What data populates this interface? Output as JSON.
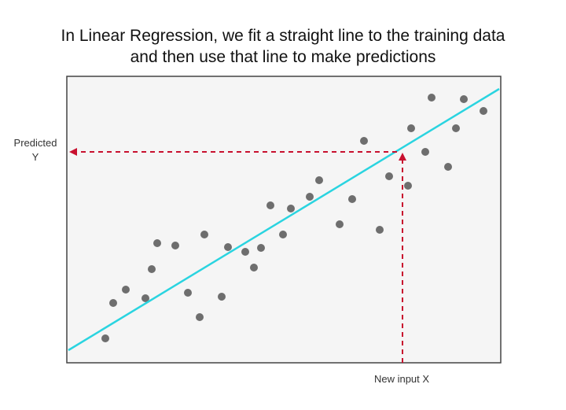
{
  "title": {
    "line1": "In Linear Regression, we fit a straight line to the training data",
    "line2": "and then use that line to make predictions"
  },
  "labels": {
    "predicted_line1": "Predicted",
    "predicted_line2": "Y",
    "new_input": "New input X"
  }
}
